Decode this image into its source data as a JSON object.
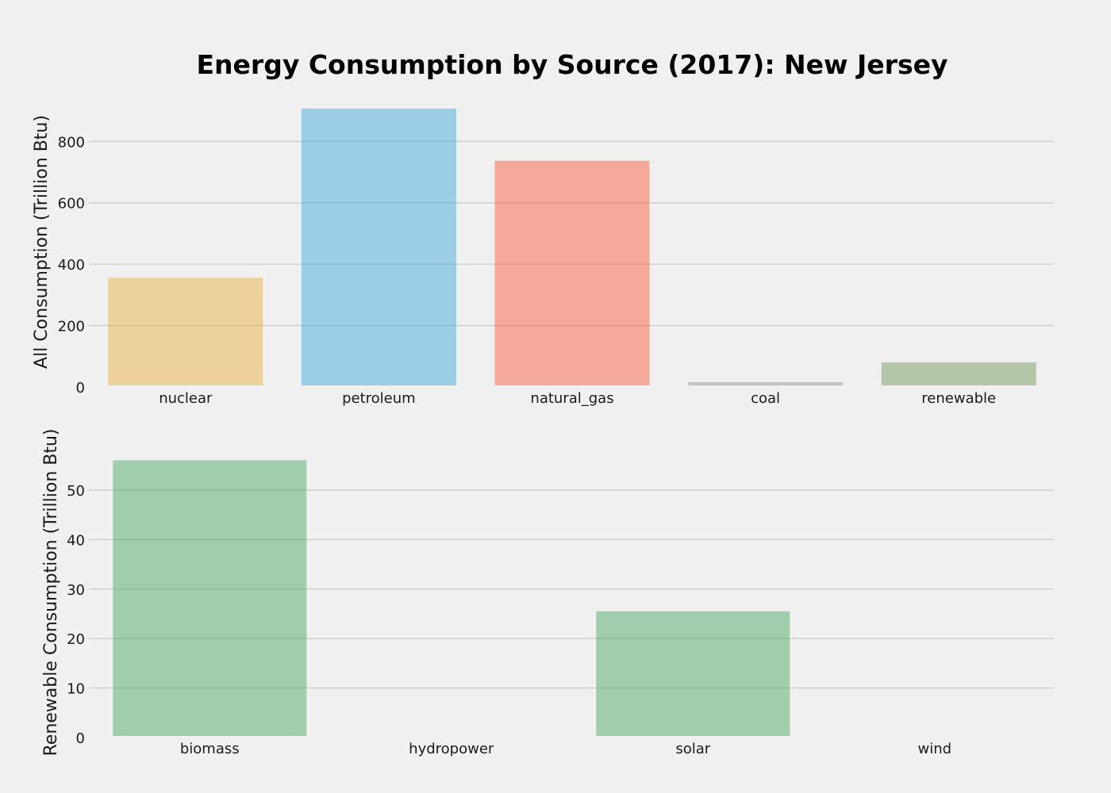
{
  "title": "Energy Consumption by Source (2017): New Jersey",
  "chart_data": [
    {
      "type": "bar",
      "categories": [
        "nuclear",
        "petroleum",
        "natural_gas",
        "coal",
        "renewable"
      ],
      "values": [
        356,
        907,
        737,
        9,
        80
      ],
      "colors": [
        "#e5ae38",
        "#30a2da",
        "#fc4f30",
        "#8b8b8b",
        "#6d904f"
      ],
      "xlabel": "",
      "ylabel": "All Consumption (Trillion Btu)",
      "ylim": [
        0,
        930
      ],
      "yticks": [
        0,
        200,
        400,
        600,
        800
      ],
      "grid": true
    },
    {
      "type": "bar",
      "categories": [
        "biomass",
        "hydropower",
        "solar",
        "wind"
      ],
      "values": [
        56,
        0,
        25.5,
        0
      ],
      "colors": [
        "#3fa35a",
        "#3fa35a",
        "#3fa35a",
        "#3fa35a"
      ],
      "xlabel": "",
      "ylabel": "Renewable Consumption (Trillion Btu)",
      "ylim": [
        0,
        58
      ],
      "yticks": [
        0,
        10,
        20,
        30,
        40,
        50
      ],
      "grid": true
    }
  ]
}
